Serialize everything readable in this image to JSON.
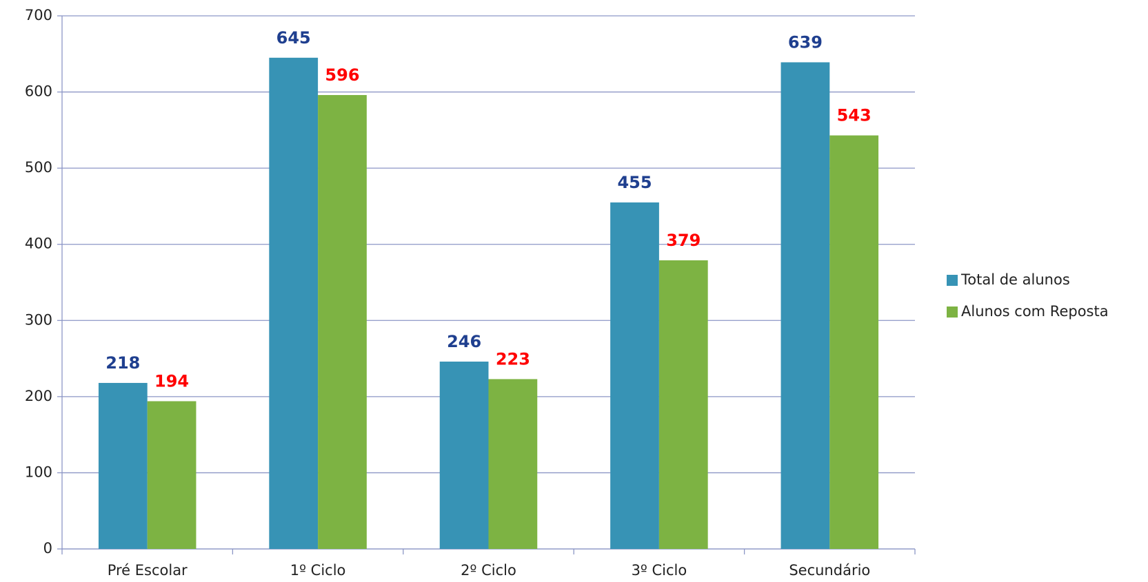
{
  "chart_data": {
    "type": "bar",
    "categories": [
      "Pré Escolar",
      "1º Ciclo",
      "2º Ciclo",
      "3º Ciclo",
      "Secundário"
    ],
    "series": [
      {
        "name": "Total de alunos",
        "color": "#3793b5",
        "label_color": "#1f3f8f",
        "values": [
          218,
          645,
          246,
          455,
          639
        ]
      },
      {
        "name": "Alunos com Reposta",
        "color": "#7db343",
        "label_color": "#ff0000",
        "values": [
          194,
          596,
          223,
          379,
          543
        ]
      }
    ],
    "ylim": [
      0,
      700
    ],
    "yticks": [
      0,
      100,
      200,
      300,
      400,
      500,
      600,
      700
    ],
    "grid": true,
    "legend": "right"
  }
}
